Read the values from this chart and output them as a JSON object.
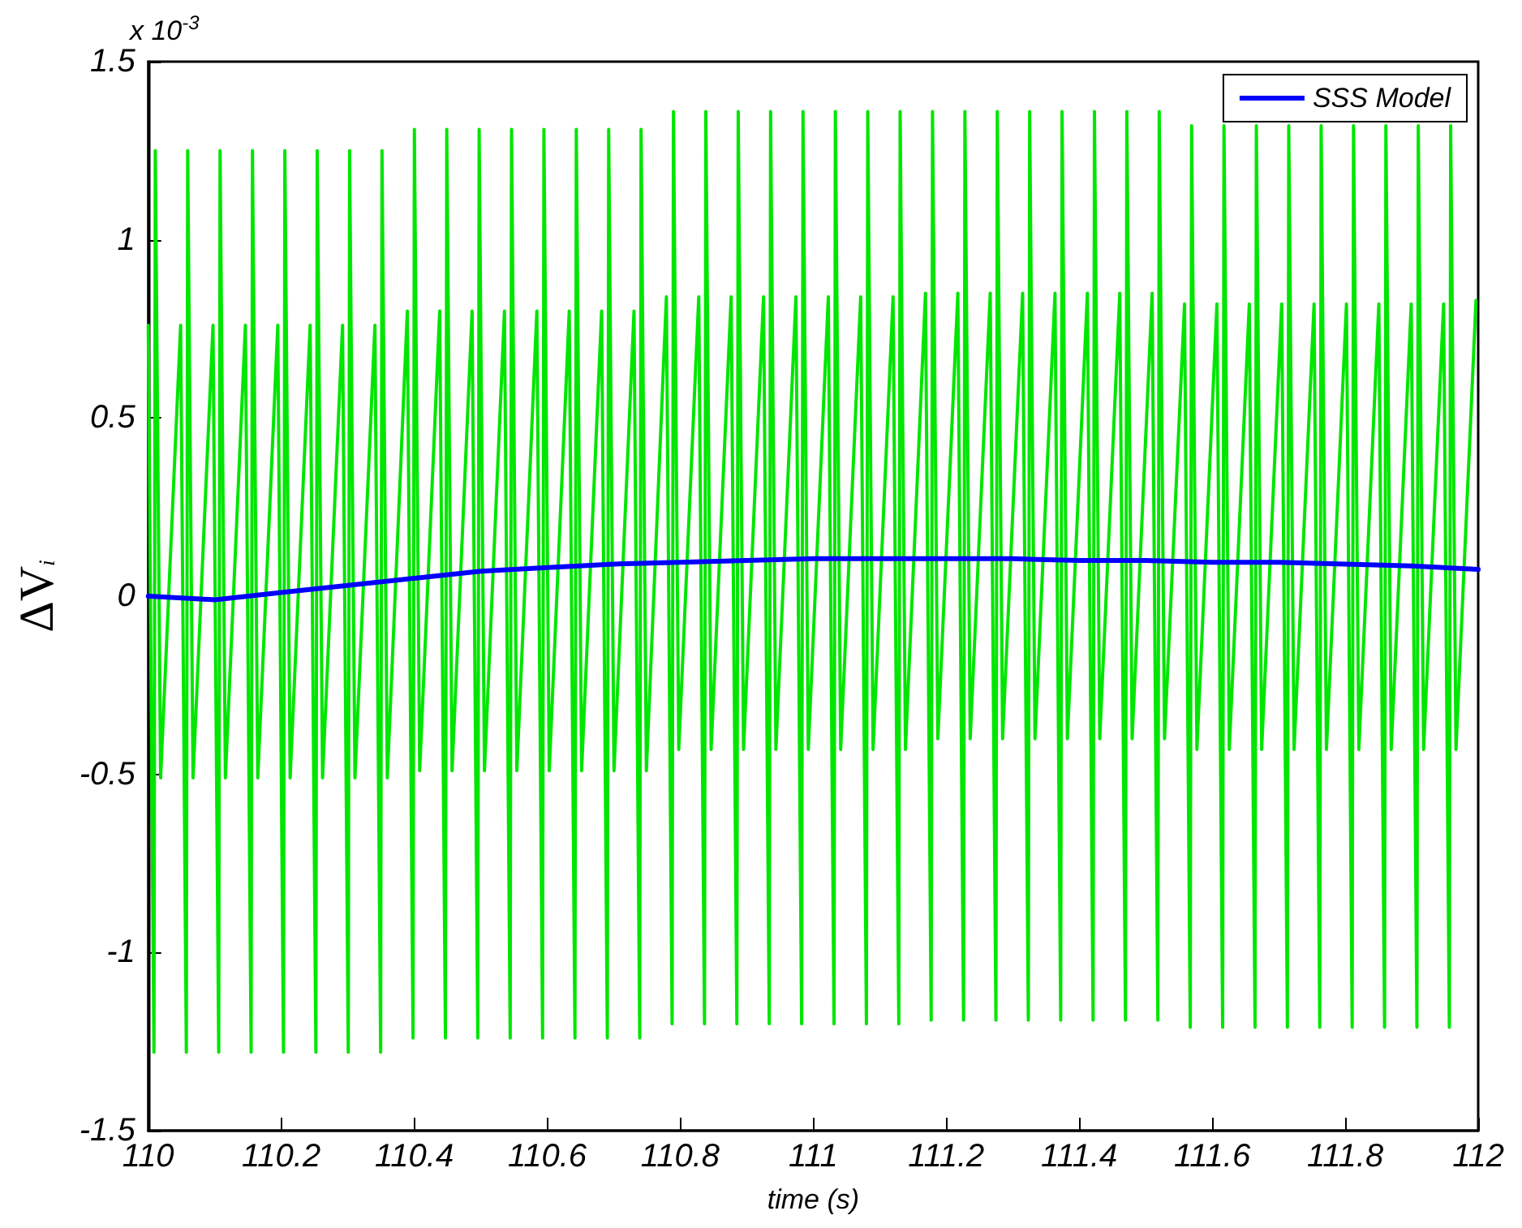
{
  "chart_data": {
    "type": "line",
    "xlabel": "time (s)",
    "ylabel": "ΔV$_{i}$",
    "annotations": [
      "x 10$^{-3}$"
    ],
    "xlim": [
      110,
      112
    ],
    "xticks": [
      110,
      110.2,
      110.4,
      110.6,
      110.8,
      111,
      111.2,
      111.4,
      111.6,
      111.8,
      112
    ],
    "ylim": [
      -1.5,
      1.5
    ],
    "yticks": [
      -1.5,
      -1,
      -0.5,
      0,
      0.5,
      1,
      1.5
    ],
    "grid": false,
    "legend": "top right",
    "marker": "none",
    "line_style": "solid",
    "series": [
      {
        "name": "SSS Model",
        "color": "#0000ff",
        "x": [
          110,
          110.1,
          110.2,
          110.3,
          110.4,
          110.5,
          110.6,
          110.7,
          110.8,
          110.9,
          111,
          111.1,
          111.2,
          111.3,
          111.4,
          111.5,
          111.6,
          111.7,
          111.8,
          111.9,
          112
        ],
        "values": [
          0,
          -0.01,
          0.01,
          0.03,
          0.05,
          0.07,
          0.08,
          0.09,
          0.095,
          0.1,
          0.105,
          0.105,
          0.105,
          0.105,
          0.1,
          0.1,
          0.095,
          0.095,
          0.09,
          0.085,
          0.075
        ]
      },
      {
        "color": "#00e600",
        "x": [
          110.0,
          110.0086,
          110.0106,
          110.0186,
          110.0487,
          110.0573,
          110.0593,
          110.0673,
          110.0974,
          110.106,
          110.108,
          110.116,
          110.1461,
          110.1547,
          110.1567,
          110.1647,
          110.1948,
          110.2034,
          110.2054,
          110.2134,
          110.2435,
          110.2521,
          110.2541,
          110.2621,
          110.2922,
          110.3008,
          110.3028,
          110.3108,
          110.3409,
          110.3495,
          110.3515,
          110.3595,
          110.3896,
          110.3982,
          110.4002,
          110.4082,
          110.4383,
          110.4469,
          110.4489,
          110.4569,
          110.487,
          110.4956,
          110.4976,
          110.5056,
          110.5357,
          110.5443,
          110.5463,
          110.5543,
          110.5844,
          110.593,
          110.595,
          110.603,
          110.6331,
          110.6417,
          110.6437,
          110.6517,
          110.6818,
          110.6904,
          110.6924,
          110.7004,
          110.7305,
          110.7391,
          110.7411,
          110.7491,
          110.7792,
          110.7878,
          110.7898,
          110.7978,
          110.8279,
          110.8365,
          110.8385,
          110.8465,
          110.8766,
          110.8852,
          110.8872,
          110.8952,
          110.9253,
          110.9339,
          110.9359,
          110.9439,
          110.974,
          110.9826,
          110.9846,
          110.9926,
          111.0227,
          111.0313,
          111.0333,
          111.0413,
          111.0714,
          111.08,
          111.082,
          111.09,
          111.1201,
          111.1287,
          111.1307,
          111.1387,
          111.1688,
          111.1774,
          111.1794,
          111.1874,
          111.2175,
          111.2261,
          111.2281,
          111.2361,
          111.2662,
          111.2748,
          111.2768,
          111.2848,
          111.3149,
          111.3235,
          111.3255,
          111.3335,
          111.3636,
          111.3722,
          111.3742,
          111.3822,
          111.4123,
          111.4209,
          111.4229,
          111.4309,
          111.461,
          111.4696,
          111.4716,
          111.4796,
          111.5097,
          111.5183,
          111.5203,
          111.5283,
          111.5584,
          111.567,
          111.569,
          111.577,
          111.6071,
          111.6157,
          111.6177,
          111.6257,
          111.6558,
          111.6644,
          111.6664,
          111.6744,
          111.7045,
          111.7131,
          111.7151,
          111.7231,
          111.7532,
          111.7618,
          111.7638,
          111.7718,
          111.8019,
          111.8105,
          111.8125,
          111.8205,
          111.8506,
          111.8592,
          111.8612,
          111.8692,
          111.8993,
          111.9079,
          111.9099,
          111.9179,
          111.948,
          111.9566,
          111.9586,
          111.9666,
          111.9967
        ],
        "values": [
          0.76,
          -1.28,
          1.25,
          -0.51,
          0.76,
          -1.28,
          1.25,
          -0.51,
          0.76,
          -1.28,
          1.25,
          -0.51,
          0.76,
          -1.28,
          1.25,
          -0.51,
          0.76,
          -1.28,
          1.25,
          -0.51,
          0.76,
          -1.28,
          1.25,
          -0.51,
          0.76,
          -1.28,
          1.25,
          -0.51,
          0.76,
          -1.28,
          1.25,
          -0.51,
          0.8,
          -1.24,
          1.31,
          -0.49,
          0.8,
          -1.24,
          1.31,
          -0.49,
          0.8,
          -1.24,
          1.31,
          -0.49,
          0.8,
          -1.24,
          1.31,
          -0.49,
          0.8,
          -1.24,
          1.31,
          -0.49,
          0.8,
          -1.24,
          1.31,
          -0.49,
          0.8,
          -1.24,
          1.31,
          -0.49,
          0.8,
          -1.24,
          1.31,
          -0.49,
          0.84,
          -1.2,
          1.36,
          -0.43,
          0.84,
          -1.2,
          1.36,
          -0.43,
          0.84,
          -1.2,
          1.36,
          -0.43,
          0.84,
          -1.2,
          1.36,
          -0.43,
          0.84,
          -1.2,
          1.36,
          -0.43,
          0.84,
          -1.2,
          1.36,
          -0.43,
          0.84,
          -1.2,
          1.36,
          -0.43,
          0.84,
          -1.2,
          1.36,
          -0.43,
          0.85,
          -1.19,
          1.36,
          -0.4,
          0.85,
          -1.19,
          1.36,
          -0.4,
          0.85,
          -1.19,
          1.36,
          -0.4,
          0.85,
          -1.19,
          1.36,
          -0.4,
          0.85,
          -1.19,
          1.36,
          -0.4,
          0.85,
          -1.19,
          1.36,
          -0.4,
          0.85,
          -1.19,
          1.36,
          -0.4,
          0.85,
          -1.19,
          1.36,
          -0.4,
          0.82,
          -1.21,
          1.32,
          -0.43,
          0.82,
          -1.21,
          1.32,
          -0.43,
          0.82,
          -1.21,
          1.32,
          -0.43,
          0.82,
          -1.21,
          1.32,
          -0.43,
          0.82,
          -1.21,
          1.32,
          -0.43,
          0.82,
          -1.21,
          1.32,
          -0.43,
          0.82,
          -1.21,
          1.32,
          -0.43,
          0.82,
          -1.21,
          1.32,
          -0.43,
          0.82,
          -1.21,
          1.32,
          -0.43,
          0.83
        ]
      }
    ]
  }
}
